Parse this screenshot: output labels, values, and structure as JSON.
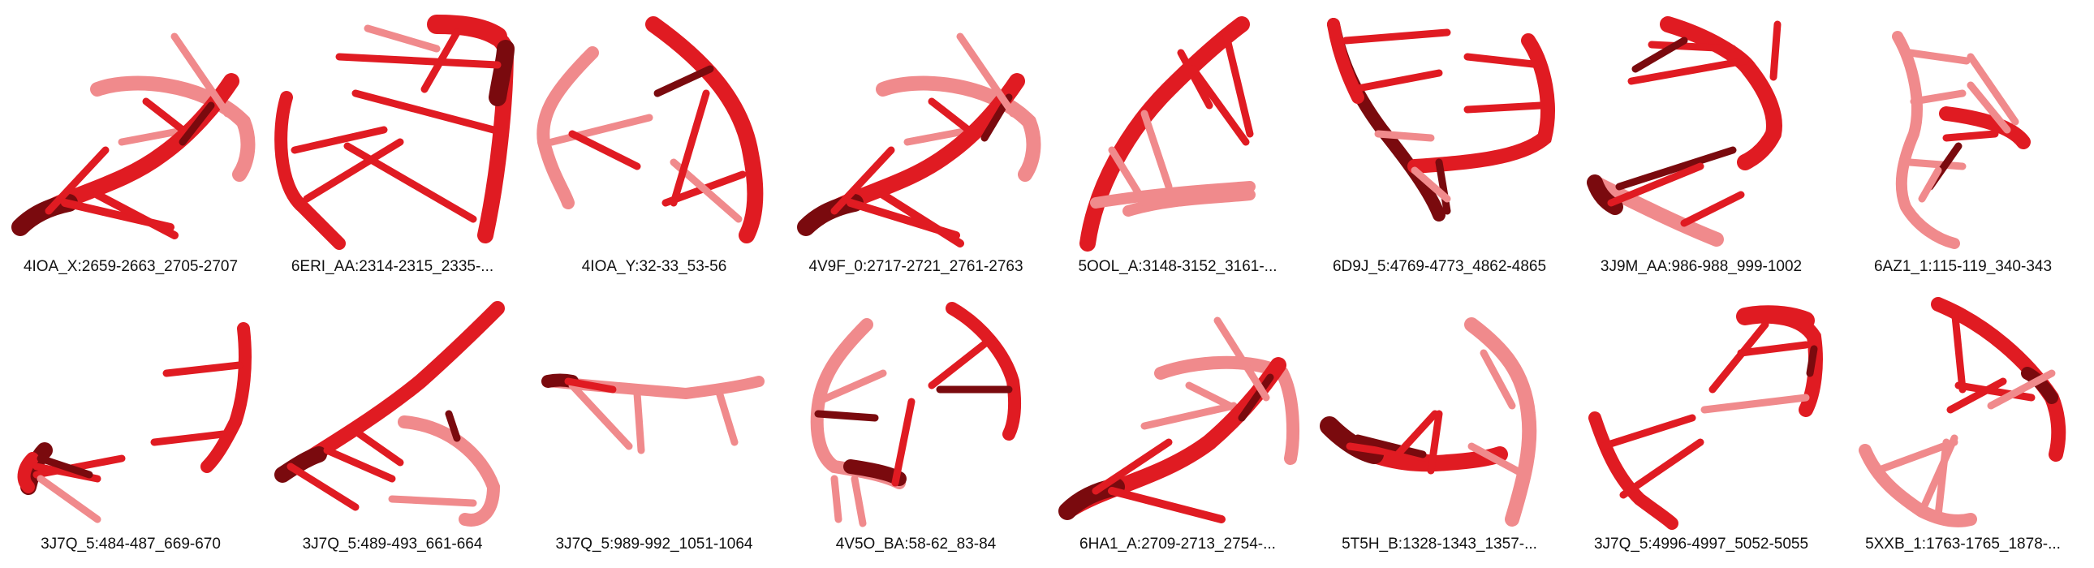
{
  "colors": {
    "strand_dark": "#7a0a0e",
    "strand_main": "#e01b22",
    "strand_light": "#f08a8c",
    "background": "#ffffff"
  },
  "panels": [
    {
      "label": "4IOA_X:2659-2663_2705-2707"
    },
    {
      "label": "6ERI_AA:2314-2315_2335-..."
    },
    {
      "label": "4IOA_Y:32-33_53-56"
    },
    {
      "label": "4V9F_0:2717-2721_2761-2763"
    },
    {
      "label": "5OOL_A:3148-3152_3161-..."
    },
    {
      "label": "6D9J_5:4769-4773_4862-4865"
    },
    {
      "label": "3J9M_AA:986-988_999-1002"
    },
    {
      "label": "6AZ1_1:115-119_340-343"
    },
    {
      "label": "3J7Q_5:484-487_669-670"
    },
    {
      "label": "3J7Q_5:489-493_661-664"
    },
    {
      "label": "3J7Q_5:989-992_1051-1064"
    },
    {
      "label": "4V5O_BA:58-62_83-84"
    },
    {
      "label": "6HA1_A:2709-2713_2754-..."
    },
    {
      "label": "5T5H_B:1328-1343_1357-..."
    },
    {
      "label": "3J7Q_5:4996-4997_5052-5055"
    },
    {
      "label": "5XXB_1:1763-1765_1878-..."
    }
  ]
}
